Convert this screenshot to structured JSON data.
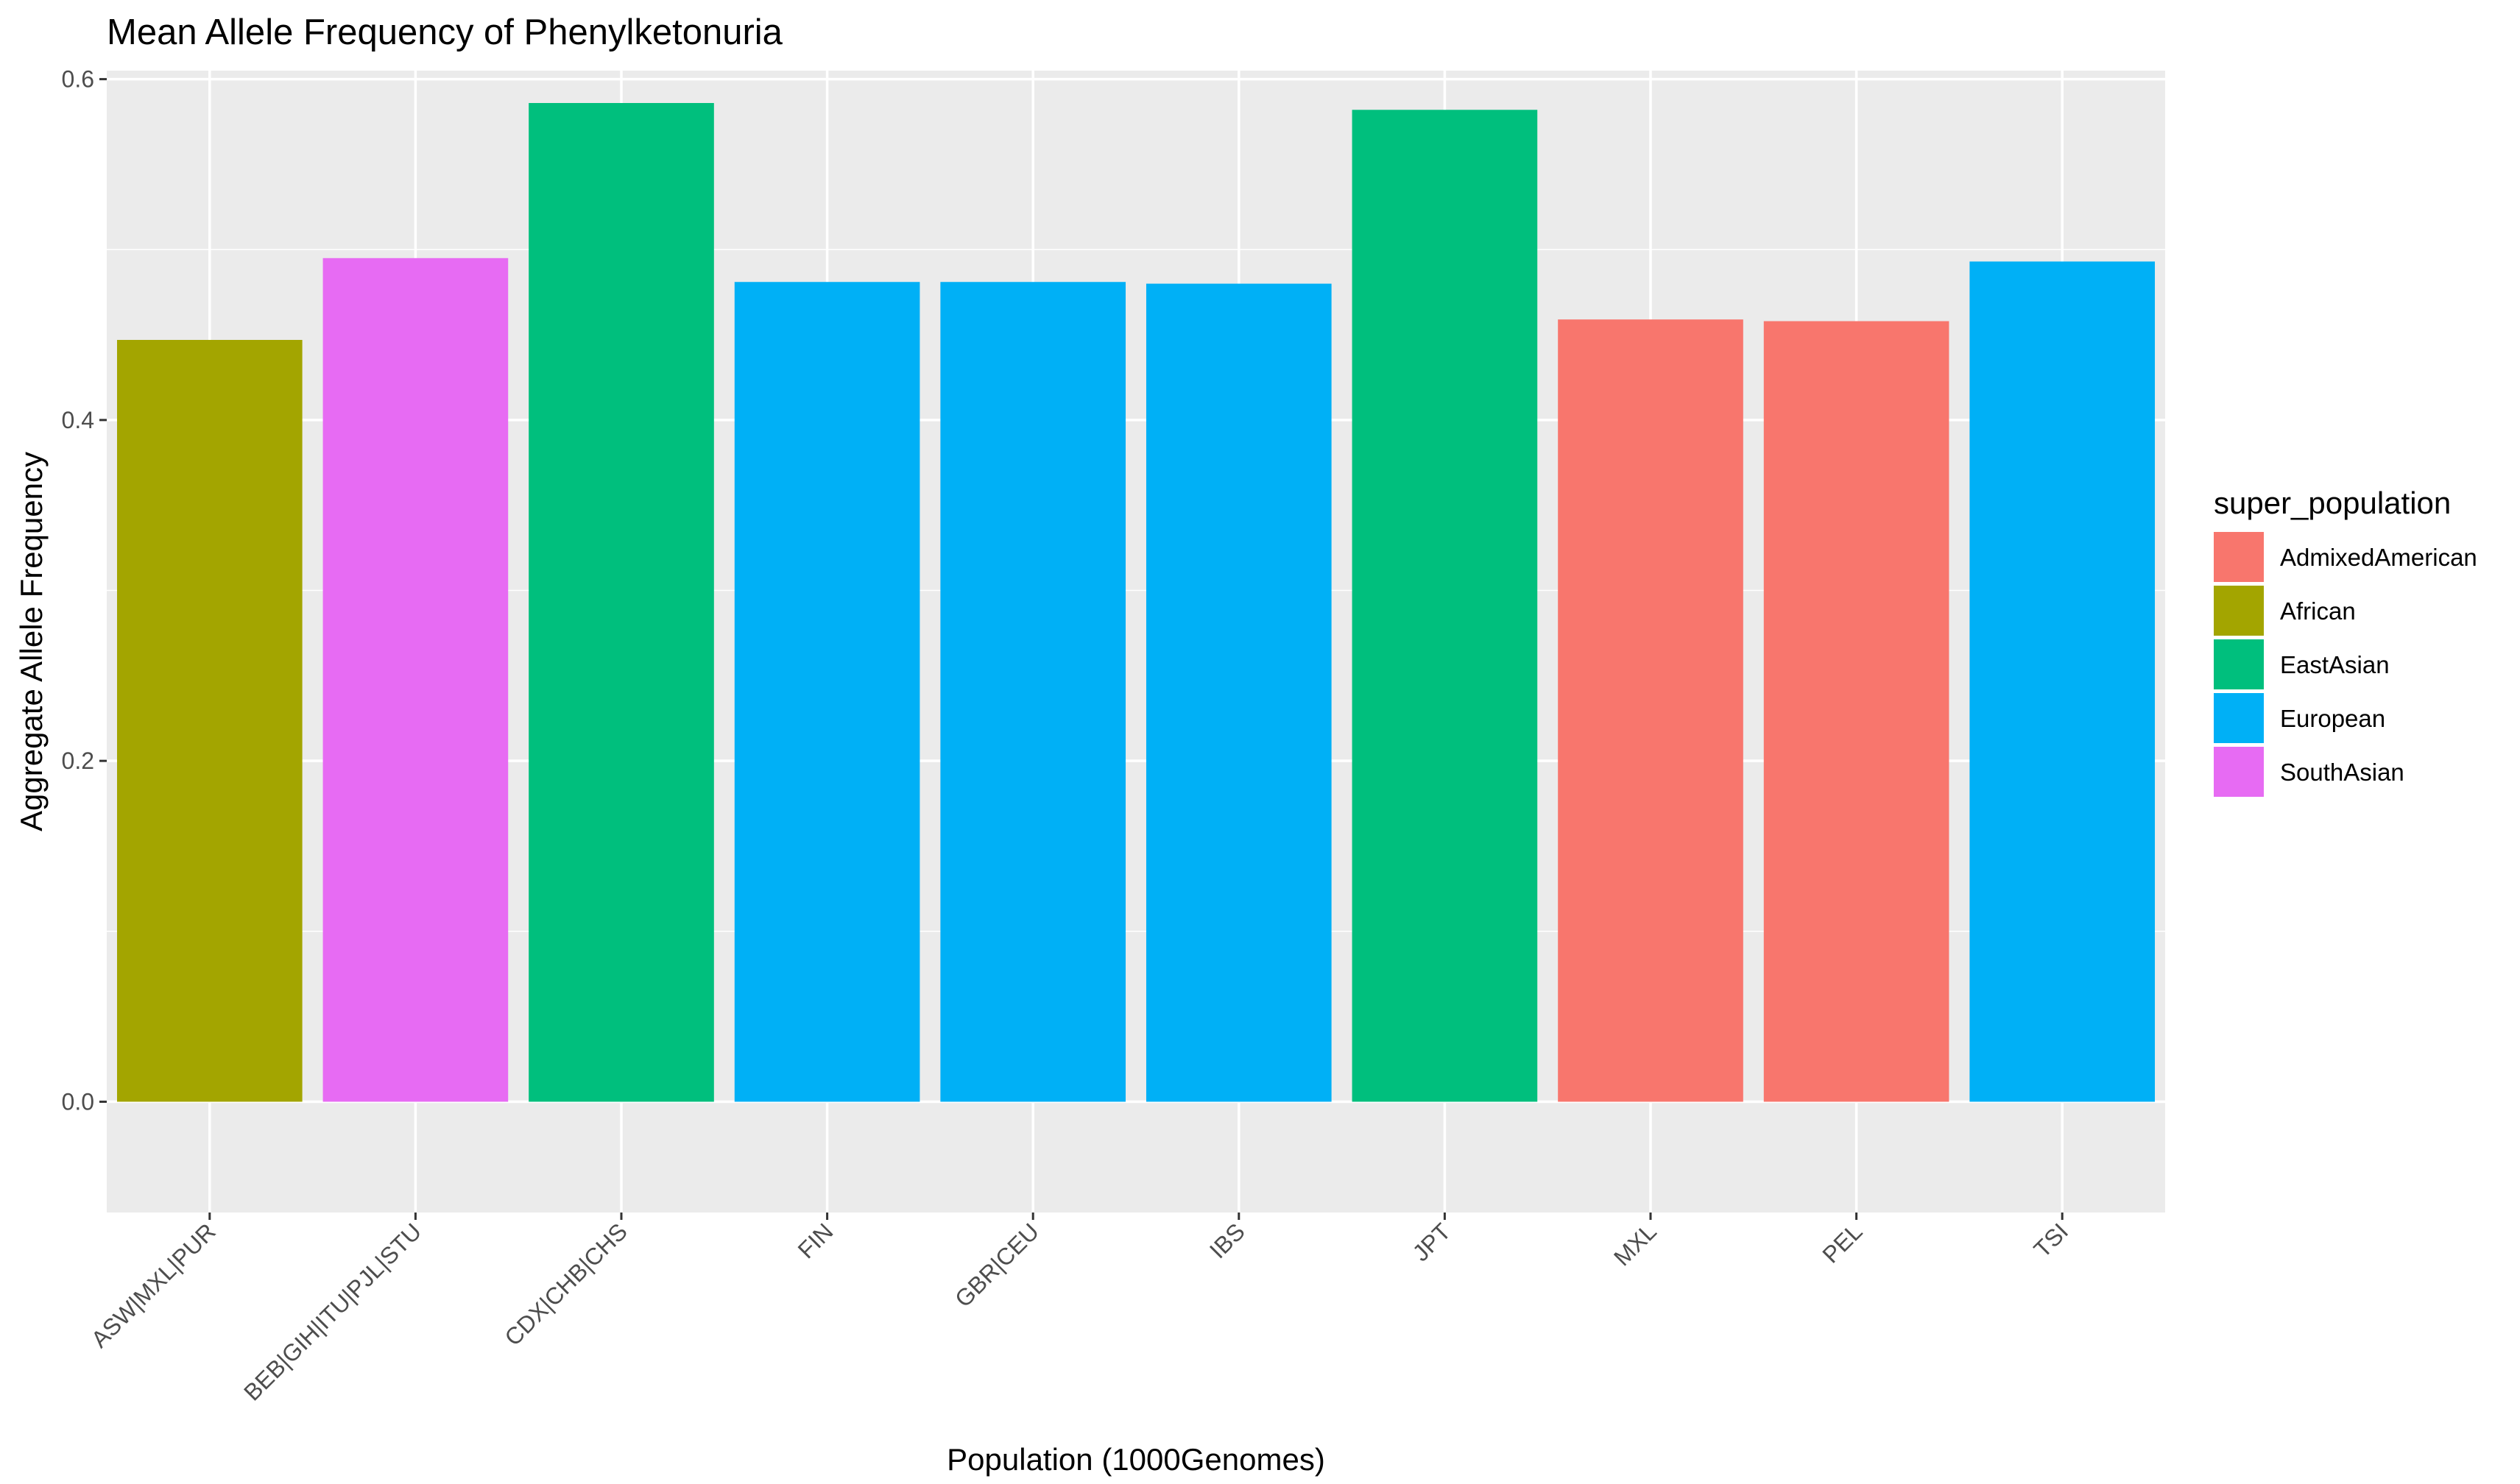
{
  "chart_data": {
    "type": "bar",
    "title": "Mean Allele Frequency of Phenylketonuria",
    "xlabel": "Population (1000Genomes)",
    "ylabel": "Aggregate Allele Frequency",
    "ylim": [
      -0.065,
      0.605
    ],
    "yticks": [
      "0.0",
      "0.2",
      "0.4",
      "0.6"
    ],
    "ytick_values": [
      0.0,
      0.2,
      0.4,
      0.6
    ],
    "grid": true,
    "legend_position": "right",
    "categories": [
      "ASW|MXL|PUR",
      "BEB|GIH|ITU|PJL|STU",
      "CDX|CHB|CHS",
      "FIN",
      "GBR|CEU",
      "IBS",
      "JPT",
      "MXL",
      "PEL",
      "TSI"
    ],
    "values": [
      0.447,
      0.495,
      0.586,
      0.481,
      0.481,
      0.48,
      0.582,
      0.459,
      0.458,
      0.493
    ],
    "groups": [
      "African",
      "SouthAsian",
      "EastAsian",
      "European",
      "European",
      "European",
      "EastAsian",
      "AdmixedAmerican",
      "AdmixedAmerican",
      "European"
    ],
    "legend": {
      "title": "super_population",
      "entries": [
        {
          "name": "AdmixedAmerican",
          "color": "#F8766D"
        },
        {
          "name": "African",
          "color": "#A3A500"
        },
        {
          "name": "EastAsian",
          "color": "#00BF7D"
        },
        {
          "name": "European",
          "color": "#00B0F6"
        },
        {
          "name": "SouthAsian",
          "color": "#E76BF3"
        }
      ]
    }
  }
}
